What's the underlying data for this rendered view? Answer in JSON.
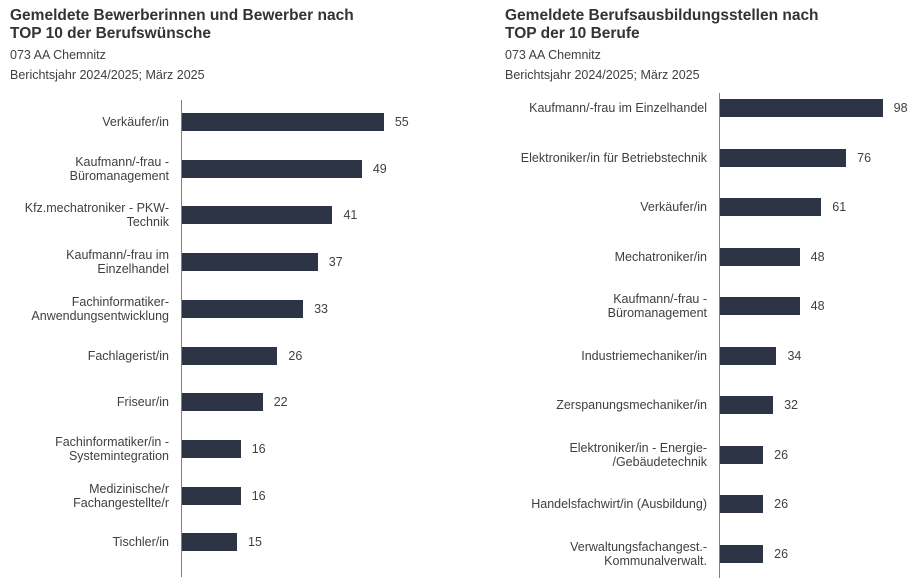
{
  "bar_color": "#2d3446",
  "chart_data": [
    {
      "type": "bar",
      "orientation": "horizontal",
      "title": "Gemeldete Bewerberinnen und Bewerber nach\nTOP 10 der Berufswünsche",
      "subtitle": "073 AA Chemnitz",
      "period": "Berichtsjahr 2024/2025; März 2025",
      "categories": [
        "Verkäufer/in",
        "Kaufmann/-frau -\nBüromanagement",
        "Kfz.mechatroniker - PKW-\nTechnik",
        "Kaufmann/-frau im\nEinzelhandel",
        "Fachinformatiker-\nAnwendungsentwicklung",
        "Fachlagerist/in",
        "Friseur/in",
        "Fachinformatiker/in -\nSystemintegration",
        "Medizinische/r\nFachangestellte/r",
        "Tischler/in"
      ],
      "values": [
        55,
        49,
        41,
        37,
        33,
        26,
        22,
        16,
        16,
        15
      ],
      "xlim": [
        0,
        60
      ],
      "grid": false
    },
    {
      "type": "bar",
      "orientation": "horizontal",
      "title": "Gemeldete Berufsausbildungsstellen nach\nTOP der 10 Berufe",
      "subtitle": "073 AA Chemnitz",
      "period": "Berichtsjahr 2024/2025; März 2025",
      "categories": [
        "Kaufmann/-frau im Einzelhandel",
        "Elektroniker/in für Betriebstechnik",
        "Verkäufer/in",
        "Mechatroniker/in",
        "Kaufmann/-frau -\nBüromanagement",
        "Industriemechaniker/in",
        "Zerspanungsmechaniker/in",
        "Elektroniker/in - Energie-\n/Gebäudetechnik",
        "Handelsfachwirt/in (Ausbildung)",
        "Verwaltungsfachangest.-\nKommunalverwalt."
      ],
      "values": [
        98,
        76,
        61,
        48,
        48,
        34,
        32,
        26,
        26,
        26
      ],
      "xlim": [
        0,
        100
      ],
      "grid": false
    }
  ]
}
